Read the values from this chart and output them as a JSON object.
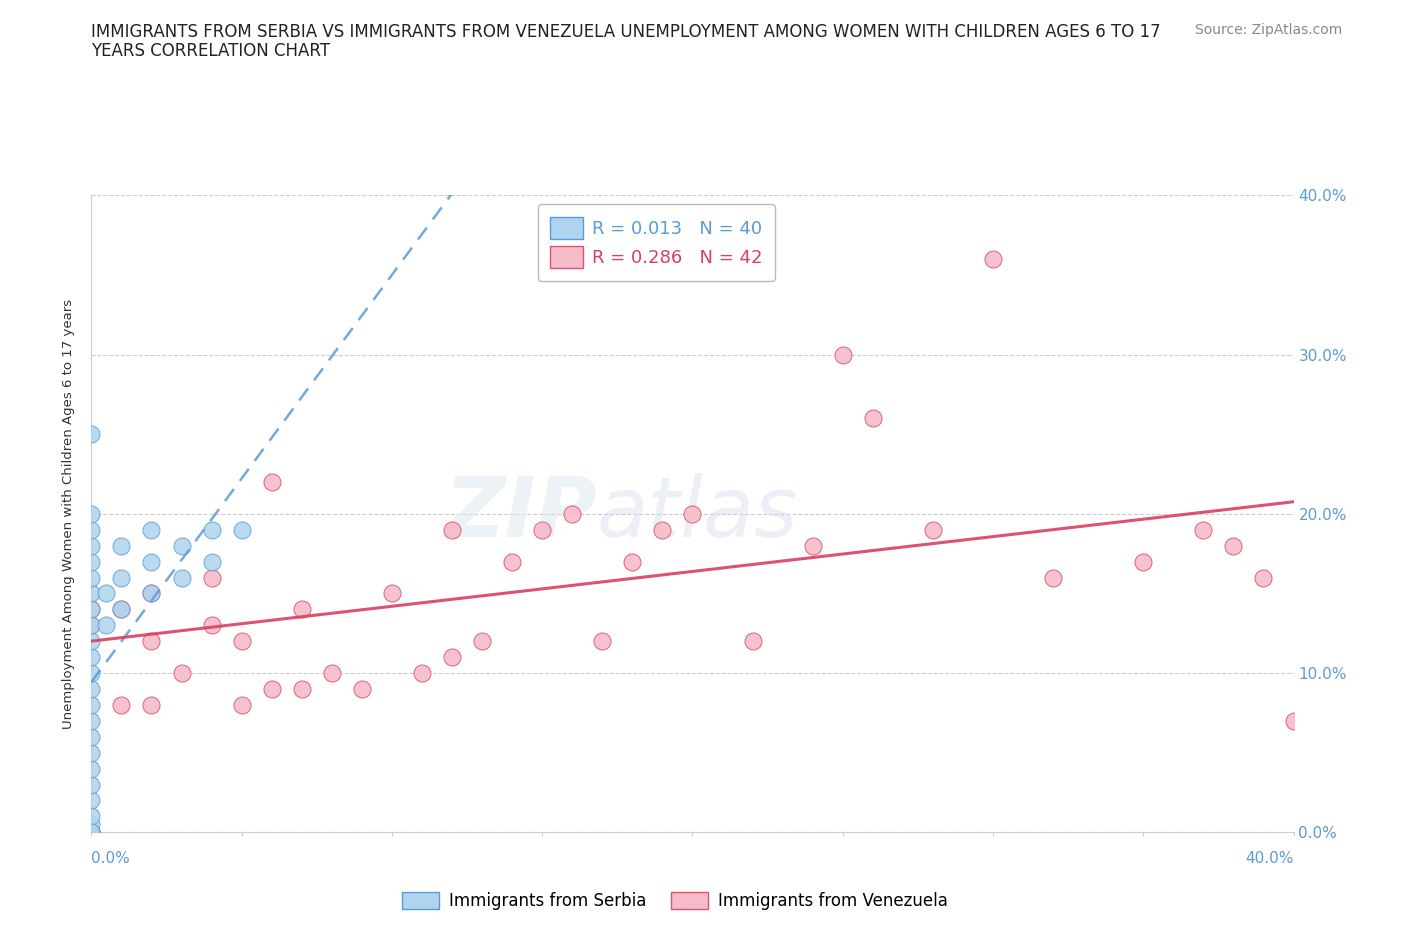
{
  "title_line1": "IMMIGRANTS FROM SERBIA VS IMMIGRANTS FROM VENEZUELA UNEMPLOYMENT AMONG WOMEN WITH CHILDREN AGES 6 TO 17",
  "title_line2": "YEARS CORRELATION CHART",
  "source": "Source: ZipAtlas.com",
  "ylabel": "Unemployment Among Women with Children Ages 6 to 17 years",
  "xlim": [
    0,
    0.4
  ],
  "ylim": [
    0,
    0.4
  ],
  "yticks": [
    0.0,
    0.1,
    0.2,
    0.3,
    0.4
  ],
  "serbia_R": 0.013,
  "serbia_N": 40,
  "venezuela_R": 0.286,
  "venezuela_N": 42,
  "serbia_color": "#aed4f0",
  "venezuela_color": "#f5bcc8",
  "serbia_edge_color": "#5b9bd5",
  "venezuela_edge_color": "#e05070",
  "serbia_line_color": "#5b9bd5",
  "venezuela_line_color": "#d94060",
  "serbia_x": [
    0.0,
    0.0,
    0.0,
    0.0,
    0.0,
    0.0,
    0.0,
    0.0,
    0.0,
    0.0,
    0.0,
    0.0,
    0.0,
    0.0,
    0.0,
    0.0,
    0.0,
    0.0,
    0.0,
    0.0,
    0.0,
    0.0,
    0.0,
    0.0,
    0.0,
    0.0,
    0.005,
    0.005,
    0.01,
    0.01,
    0.01,
    0.02,
    0.02,
    0.02,
    0.03,
    0.03,
    0.04,
    0.04,
    0.05,
    0.0
  ],
  "serbia_y": [
    0.0,
    0.0,
    0.0,
    0.0,
    0.005,
    0.01,
    0.02,
    0.03,
    0.04,
    0.05,
    0.06,
    0.07,
    0.08,
    0.09,
    0.1,
    0.11,
    0.12,
    0.13,
    0.14,
    0.15,
    0.16,
    0.17,
    0.18,
    0.19,
    0.2,
    0.25,
    0.13,
    0.15,
    0.14,
    0.16,
    0.18,
    0.15,
    0.17,
    0.19,
    0.16,
    0.18,
    0.17,
    0.19,
    0.19,
    0.0
  ],
  "venezuela_x": [
    0.0,
    0.0,
    0.01,
    0.01,
    0.02,
    0.02,
    0.02,
    0.03,
    0.04,
    0.04,
    0.05,
    0.05,
    0.06,
    0.06,
    0.07,
    0.07,
    0.08,
    0.09,
    0.1,
    0.11,
    0.12,
    0.12,
    0.13,
    0.14,
    0.15,
    0.16,
    0.17,
    0.18,
    0.19,
    0.2,
    0.22,
    0.24,
    0.25,
    0.26,
    0.28,
    0.3,
    0.32,
    0.35,
    0.37,
    0.38,
    0.39,
    0.4
  ],
  "venezuela_y": [
    0.13,
    0.14,
    0.08,
    0.14,
    0.08,
    0.12,
    0.15,
    0.1,
    0.13,
    0.16,
    0.08,
    0.12,
    0.09,
    0.22,
    0.09,
    0.14,
    0.1,
    0.09,
    0.15,
    0.1,
    0.11,
    0.19,
    0.12,
    0.17,
    0.19,
    0.2,
    0.12,
    0.17,
    0.19,
    0.2,
    0.12,
    0.18,
    0.3,
    0.26,
    0.19,
    0.36,
    0.16,
    0.17,
    0.19,
    0.18,
    0.16,
    0.07
  ],
  "watermark_zip": "ZIP",
  "watermark_atlas": "atlas",
  "grid_color": "#cccccc",
  "background_color": "#ffffff",
  "tick_color": "#5b9bd5",
  "title_color": "#222222",
  "source_color": "#888888"
}
